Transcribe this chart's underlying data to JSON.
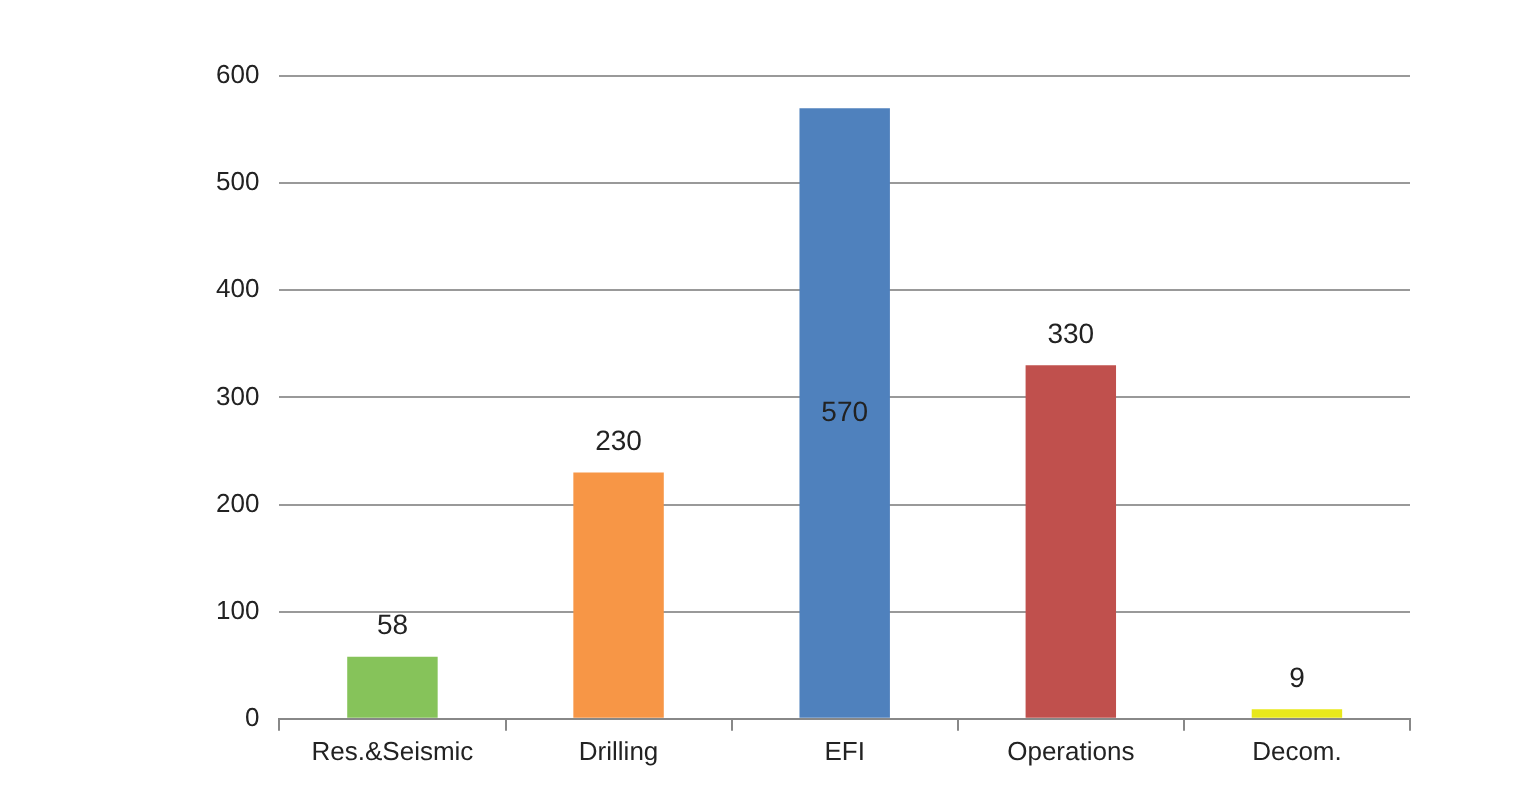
{
  "chart_data": {
    "type": "bar",
    "categories": [
      "Res.&Seismic",
      "Drilling",
      "EFI",
      "Operations",
      "Decom."
    ],
    "values": [
      58,
      230,
      570,
      330,
      9
    ],
    "colors": [
      "#86c35a",
      "#f79646",
      "#4f81bd",
      "#c0504d",
      "#e8e81a"
    ],
    "ylim": [
      0,
      600
    ],
    "yticks": [
      0,
      100,
      200,
      300,
      400,
      500,
      600
    ],
    "grid": "y",
    "data_labels": true,
    "legend": false
  }
}
